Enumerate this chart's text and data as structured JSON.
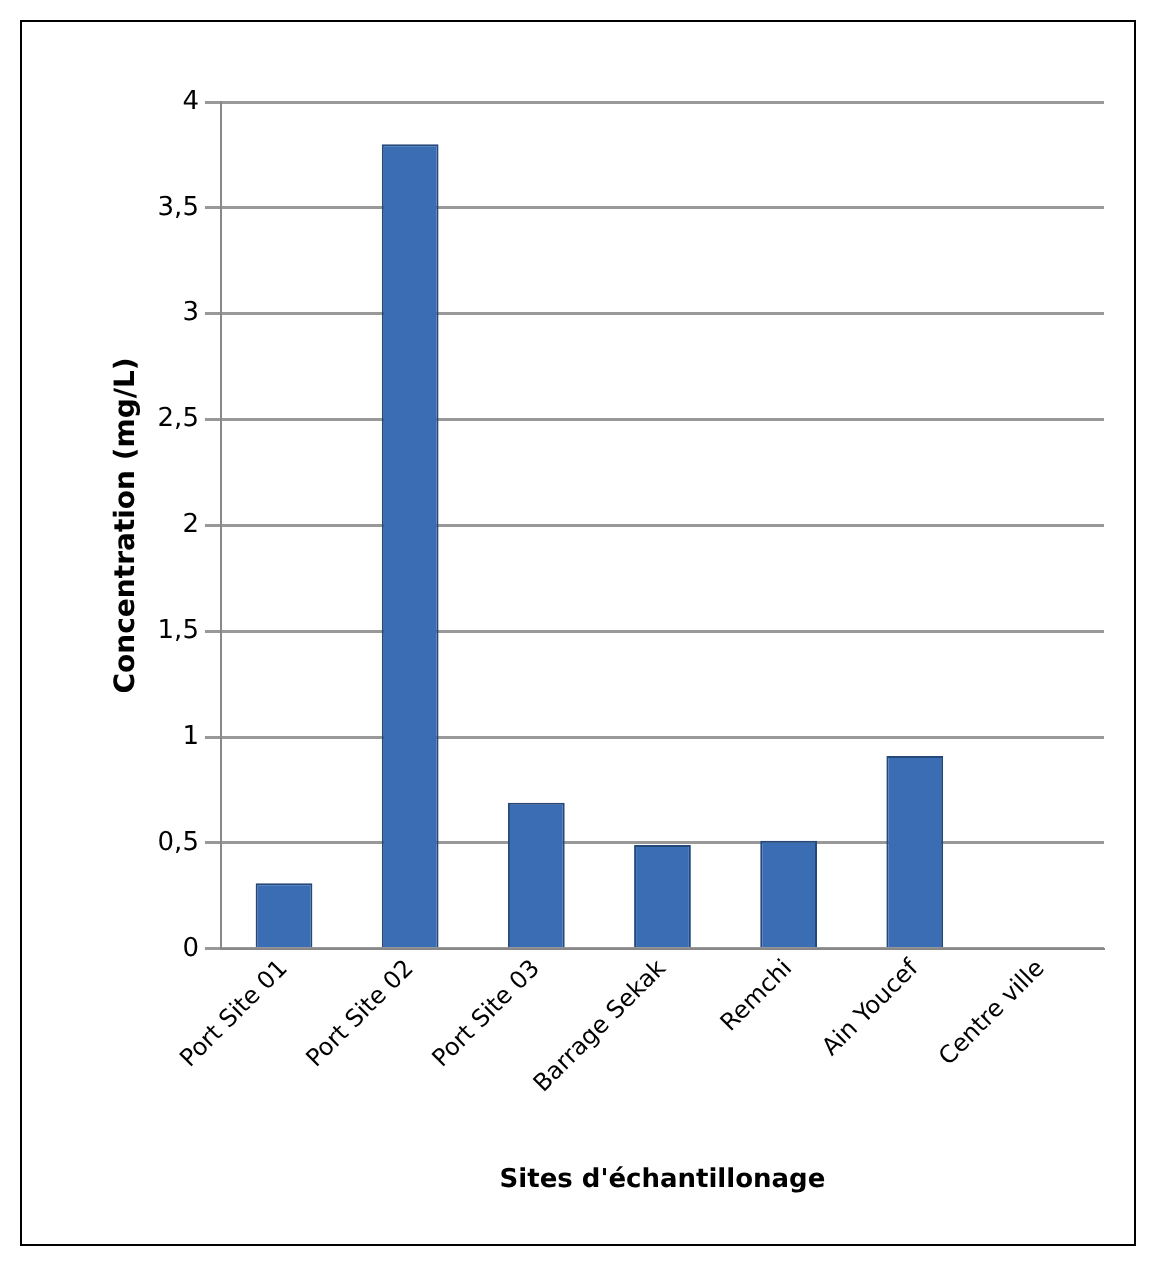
{
  "chart_data": {
    "type": "bar",
    "xlabel": "Sites d'échantillonage",
    "ylabel": "Concentration (mg/L)",
    "categories": [
      "Port Site 01",
      "Port Site 02",
      "Port Site 03",
      "Barrage Sekak",
      "Remchi",
      "Ain Youcef",
      "Centre ville"
    ],
    "values": [
      0.31,
      3.8,
      0.69,
      0.49,
      0.51,
      0.91,
      0
    ],
    "color": "#3a6db3",
    "ylim": [
      0,
      4
    ],
    "yticks": [
      0,
      {
        "value": 0.5,
        "label": "0,5"
      },
      1,
      {
        "value": 1.5,
        "label": "1,5"
      },
      2,
      {
        "value": 2.5,
        "label": "2,5"
      },
      3,
      {
        "value": 3.5,
        "label": "3,5"
      },
      4
    ],
    "grid": "y",
    "legend": false
  }
}
